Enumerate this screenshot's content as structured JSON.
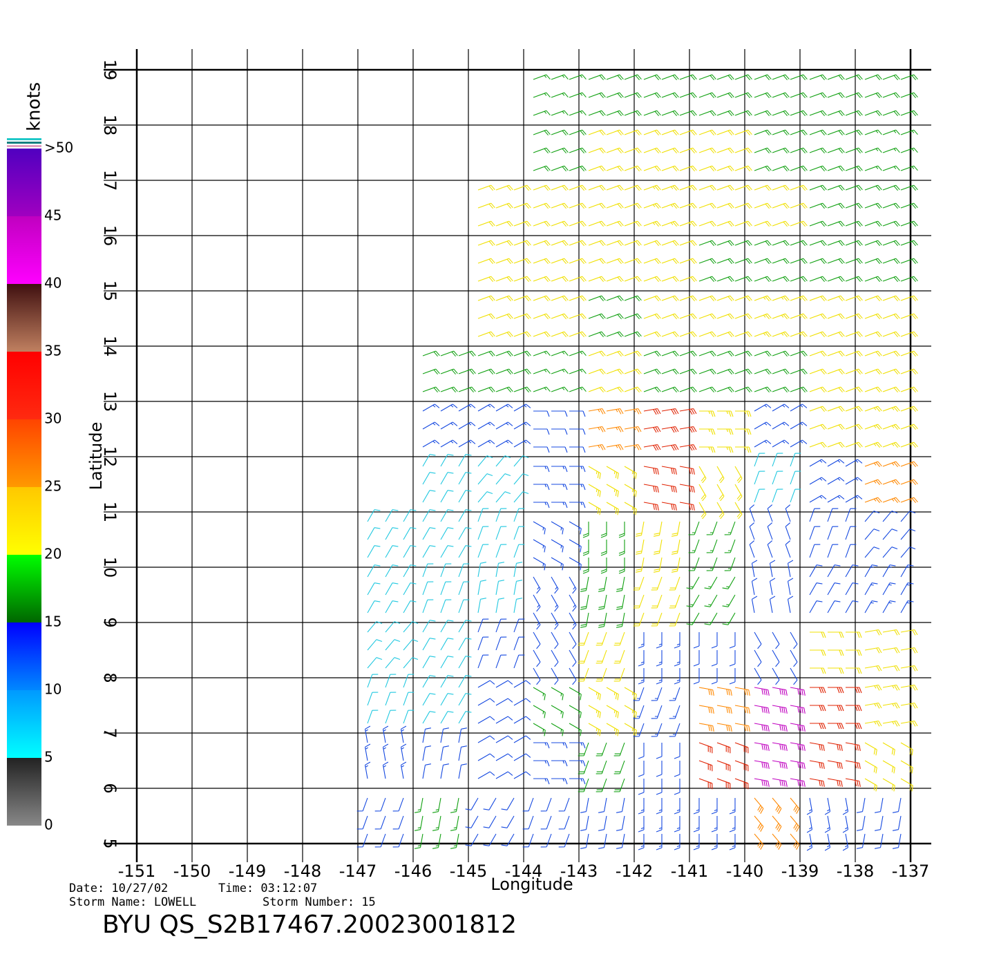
{
  "chart_data": {
    "type": "wind-barb",
    "title": "BYU  QS_S2B17467.20023001812",
    "date_label": "Date: 10/27/02",
    "time_label": "Time: 03:12:07",
    "storm_name_label": "Storm  Name: LOWELL",
    "storm_number_label": "Storm  Number: 15",
    "x_label": "Longitude",
    "y_label": "Latitude",
    "xlim": [
      -151,
      -137
    ],
    "xticks": [
      -151,
      -150,
      -149,
      -148,
      -147,
      -146,
      -145,
      -144,
      -143,
      -142,
      -141,
      -140,
      -139,
      -138,
      -137
    ],
    "ylim": [
      5,
      19
    ],
    "yticks": [
      5,
      6,
      7,
      8,
      9,
      10,
      11,
      12,
      13,
      14,
      15,
      16,
      17,
      18,
      19
    ],
    "grid": true,
    "wind": {
      "lats": [
        18.5,
        17.5,
        16.5,
        15.5,
        14.5,
        13.5,
        12.5,
        11.5,
        10.5,
        9.5,
        8.5,
        7.5,
        6.5,
        5.5
      ],
      "lons": [
        -146.5,
        -145.5,
        -144.5,
        -143.5,
        -142.5,
        -141.5,
        -140.5,
        -139.5,
        -138.5,
        -137.5
      ],
      "speed": [
        [
          null,
          null,
          null,
          17,
          18,
          18,
          18,
          18,
          18,
          18
        ],
        [
          null,
          null,
          null,
          19,
          21,
          22,
          21,
          18,
          18,
          17
        ],
        [
          null,
          null,
          21,
          22,
          22,
          23,
          22,
          21,
          19,
          18
        ],
        [
          null,
          null,
          21,
          22,
          22,
          21,
          19,
          18,
          18,
          19
        ],
        [
          null,
          null,
          21,
          22,
          19,
          22,
          21,
          24,
          22,
          22
        ],
        [
          null,
          18,
          18,
          17,
          22,
          19,
          18,
          19,
          22,
          21
        ],
        [
          null,
          13,
          13,
          12,
          27,
          30,
          24,
          13,
          22,
          24
        ],
        [
          null,
          8,
          8,
          14,
          24,
          32,
          20,
          9,
          13,
          26
        ],
        [
          9,
          8,
          8,
          13,
          18,
          22,
          17,
          11,
          10,
          12
        ],
        [
          8,
          8,
          9,
          13,
          18,
          22,
          15,
          11,
          12,
          13
        ],
        [
          8,
          8,
          10,
          12,
          21,
          13,
          12,
          12,
          22,
          22
        ],
        [
          9,
          8,
          10,
          17,
          24,
          13,
          28,
          40,
          32,
          24
        ],
        [
          13,
          10,
          11,
          13,
          18,
          10,
          30,
          42,
          30,
          20
        ],
        [
          12,
          15,
          12,
          12,
          12,
          13,
          14,
          28,
          14,
          12
        ]
      ],
      "direction": [
        [
          null,
          null,
          null,
          70,
          70,
          70,
          70,
          70,
          70,
          70
        ],
        [
          null,
          null,
          null,
          70,
          70,
          70,
          70,
          70,
          70,
          70
        ],
        [
          null,
          null,
          70,
          70,
          70,
          70,
          70,
          70,
          70,
          70
        ],
        [
          null,
          null,
          70,
          70,
          70,
          70,
          70,
          70,
          70,
          70
        ],
        [
          null,
          null,
          70,
          70,
          70,
          70,
          70,
          70,
          70,
          70
        ],
        [
          null,
          70,
          70,
          70,
          70,
          70,
          70,
          70,
          70,
          70
        ],
        [
          null,
          60,
          60,
          90,
          80,
          80,
          90,
          60,
          70,
          70
        ],
        [
          null,
          30,
          40,
          90,
          120,
          100,
          150,
          20,
          60,
          70
        ],
        [
          30,
          30,
          20,
          120,
          180,
          190,
          200,
          340,
          20,
          40
        ],
        [
          30,
          20,
          10,
          150,
          190,
          200,
          210,
          350,
          30,
          30
        ],
        [
          40,
          30,
          20,
          150,
          200,
          180,
          180,
          150,
          90,
          80
        ],
        [
          20,
          30,
          60,
          120,
          120,
          200,
          100,
          100,
          90,
          80
        ],
        [
          350,
          10,
          60,
          90,
          200,
          180,
          110,
          100,
          100,
          120
        ],
        [
          200,
          190,
          210,
          200,
          190,
          180,
          180,
          140,
          170,
          190
        ]
      ]
    },
    "colorbar": {
      "label": "knots",
      "ticks": [
        0,
        5,
        10,
        15,
        20,
        25,
        30,
        35,
        40,
        45,
        {
          "value": 50,
          "label": ">50"
        }
      ],
      "colors": [
        [
          "#888888",
          "#222222"
        ],
        [
          "#00ffff",
          "#0099ff"
        ],
        [
          "#0088ff",
          "#0000ff"
        ],
        [
          "#006600",
          "#00ff00"
        ],
        [
          "#ffff00",
          "#ffc800"
        ],
        [
          "#ff9900",
          "#ff4400"
        ],
        [
          "#ff2a10",
          "#ff0000"
        ],
        [
          "#c08060",
          "#401010"
        ],
        [
          "#ff00ff",
          "#c000c0"
        ],
        [
          "#a000c0",
          "#5000c0"
        ]
      ],
      "barb_colors": [
        "#444444",
        "#20c8e0",
        "#1448e0",
        "#10a010",
        "#f0e000",
        "#ff8800",
        "#e02000",
        "#804020",
        "#c000c0",
        "#6000c0"
      ]
    }
  }
}
